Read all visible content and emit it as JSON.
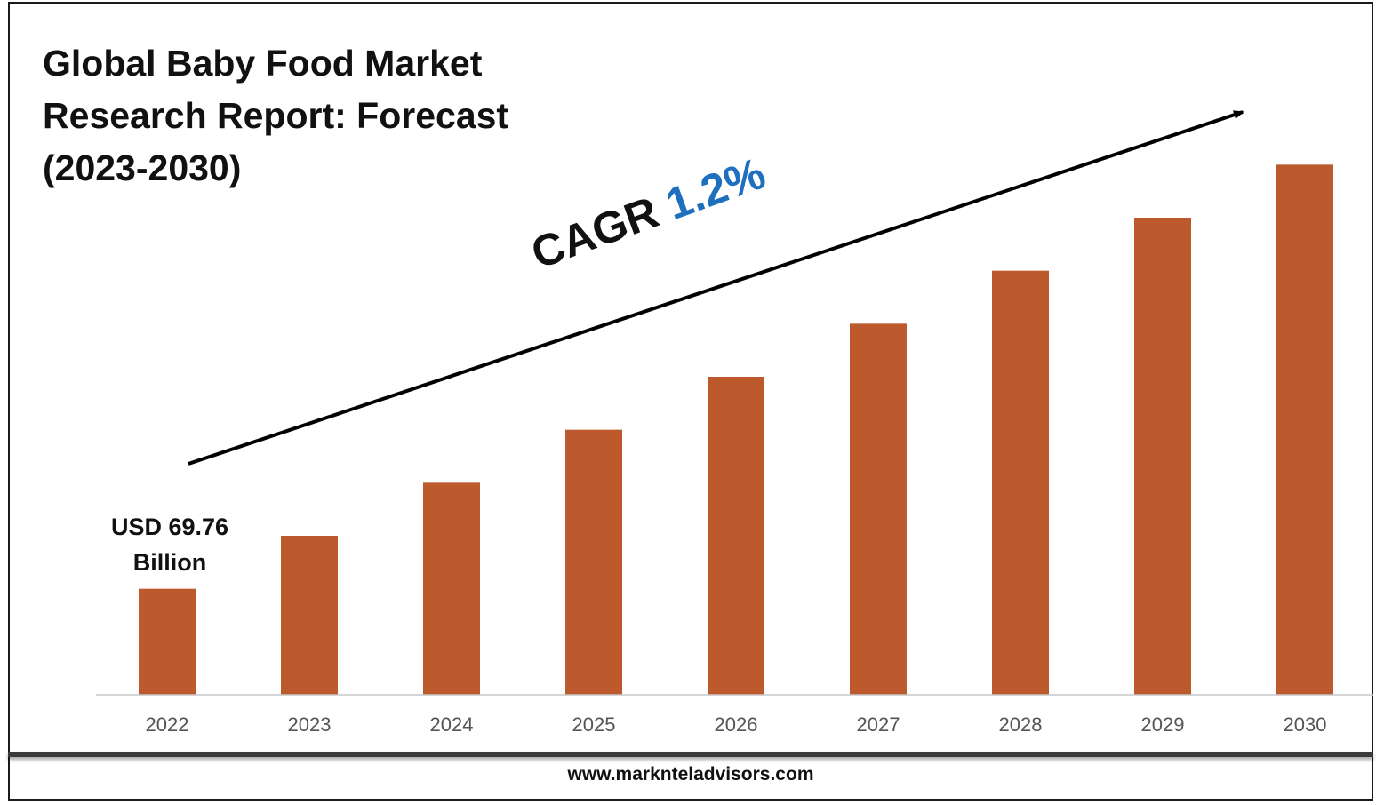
{
  "title_lines": [
    "Global Baby Food Market",
    "Research Report: Forecast",
    "(2023-2030)"
  ],
  "cagr": {
    "label": "CAGR",
    "value": "1.2%",
    "value_color": "#1f6fbf"
  },
  "start_value_label": {
    "line1": "USD 69.76",
    "line2": "Billion"
  },
  "website": "www.marknteladvisors.com",
  "chart_data": {
    "type": "bar",
    "title": "Global Baby Food Market Research Report: Forecast (2023-2030)",
    "xlabel": "",
    "ylabel": "",
    "categories": [
      "2022",
      "2023",
      "2024",
      "2025",
      "2026",
      "2027",
      "2028",
      "2029",
      "2030"
    ],
    "values": [
      2,
      3,
      4,
      5,
      6,
      7,
      8,
      9,
      10
    ],
    "ylim": [
      0,
      12
    ],
    "grid": false,
    "legend": "none",
    "bar_color": "#bc5a2e",
    "annotations": [
      "USD 69.76 Billion",
      "CAGR 1.2%"
    ]
  }
}
